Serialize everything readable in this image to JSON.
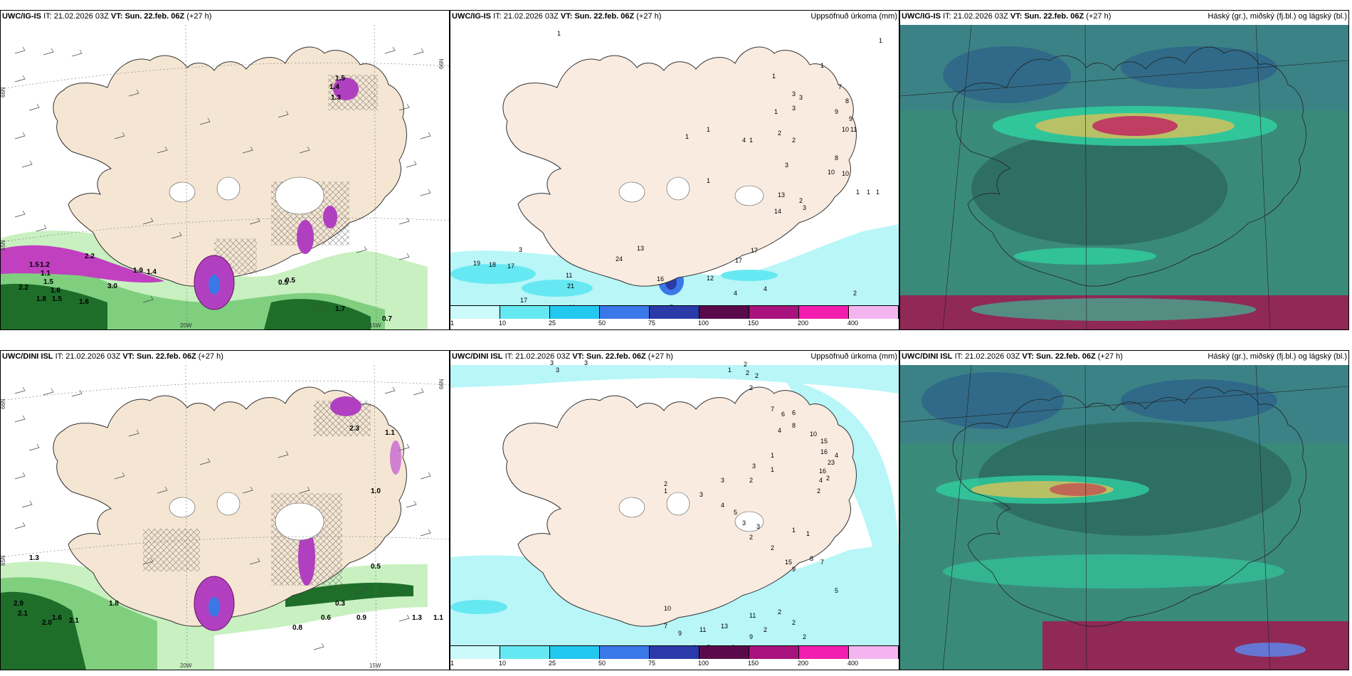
{
  "panels": [
    {
      "id": "p1",
      "model": "UWC/IG-IS",
      "it_label": "IT:",
      "it_value": "21.02.2026 03Z",
      "vt_label": "VT:",
      "vt_value": "Sun. 22.feb. 06Z",
      "lead": "(+27 h)",
      "right_title": ""
    },
    {
      "id": "p2",
      "model": "UWC/IG-IS",
      "it_label": "IT:",
      "it_value": "21.02.2026 03Z",
      "vt_label": "VT:",
      "vt_value": "Sun. 22.feb. 06Z",
      "lead": "(+27 h)",
      "right_title": "Uppsöfnuð úrkoma (mm)"
    },
    {
      "id": "p3",
      "model": "UWC/IG-IS",
      "it_label": "IT:",
      "it_value": "21.02.2026 03Z",
      "vt_label": "VT:",
      "vt_value": "Sun. 22.feb. 06Z",
      "lead": "(+27 h)",
      "right_title": "Háský (gr.), miðský (fj.bl.) og lágský (bl.)"
    },
    {
      "id": "p4",
      "model": "UWC/DINI ISL",
      "it_label": "IT:",
      "it_value": "21.02.2026 03Z",
      "vt_label": "VT:",
      "vt_value": "Sun. 22.feb. 06Z",
      "lead": "(+27 h)",
      "right_title": ""
    },
    {
      "id": "p5",
      "model": "UWC/DINI ISL",
      "it_label": "IT:",
      "it_value": "21.02.2026 03Z",
      "vt_label": "VT:",
      "vt_value": "Sun. 22.feb. 06Z",
      "lead": "(+27 h)",
      "right_title": "Uppsöfnuð úrkoma (mm)"
    },
    {
      "id": "p6",
      "model": "UWC/DINI ISL",
      "it_label": "IT:",
      "it_value": "21.02.2026 03Z",
      "vt_label": "VT:",
      "vt_value": "Sun. 22.feb. 06Z",
      "lead": "(+27 h)",
      "right_title": "Háský (gr.), miðský (fj.bl.) og lágský (bl.)"
    }
  ],
  "axis_labels": {
    "lat66": "66N",
    "lat65": "65N",
    "lat64": "64N",
    "lon20": "20W",
    "lon15": "15W"
  },
  "legend": {
    "labels": [
      "1",
      "10",
      "25",
      "50",
      "75",
      "100",
      "150",
      "200",
      "400"
    ],
    "colors": [
      "#ccfafa",
      "#66e8f2",
      "#22c8f0",
      "#3a78e8",
      "#2a3aa8",
      "#5a0a4a",
      "#a8127e",
      "#f21eb0",
      "#f4b4f0"
    ]
  },
  "precip_numbers_top": [
    "1",
    "1",
    "1",
    "1",
    "3",
    "7",
    "8",
    "9",
    "9",
    "10",
    "11",
    "3",
    "3",
    "1",
    "2",
    "2",
    "1",
    "1",
    "1",
    "4",
    "3",
    "8",
    "10",
    "10",
    "1",
    "1",
    "1",
    "13",
    "14",
    "2",
    "3",
    "1",
    "19",
    "18",
    "17",
    "3",
    "11",
    "21",
    "17",
    "13",
    "24",
    "16",
    "12",
    "17",
    "17",
    "4",
    "4",
    "2",
    "11",
    "7",
    "13"
  ],
  "precip_numbers_bottom": [
    "3",
    "3",
    "3",
    "1",
    "2",
    "2",
    "2",
    "2",
    "7",
    "6",
    "6",
    "8",
    "4",
    "10",
    "15",
    "16",
    "23",
    "16",
    "4",
    "4",
    "2",
    "2",
    "1",
    "1",
    "3",
    "2",
    "3",
    "2",
    "1",
    "3",
    "4",
    "5",
    "3",
    "3",
    "2",
    "2",
    "1",
    "1",
    "15",
    "9",
    "8",
    "7",
    "5",
    "2",
    "2",
    "2",
    "11",
    "9",
    "13",
    "11",
    "10",
    "7",
    "4",
    "9",
    "7",
    "2",
    "2"
  ],
  "wind_labels_top": [
    "2.2",
    "1.5",
    "1.2",
    "1.1",
    "1.9",
    "1.4",
    "2.2",
    "1.5",
    "1.6",
    "1.8",
    "1.5",
    "1.6",
    "3.0",
    "0.5",
    "0.5",
    "1.7",
    "0.7",
    "1.4",
    "1.3",
    "1.5"
  ],
  "wind_labels_bottom": [
    "1.3",
    "2.9",
    "2.1",
    "2.0",
    "1.6",
    "2.1",
    "1.8",
    "0.8",
    "0.6",
    "0.3",
    "0.9",
    "1.3",
    "1.1",
    "0.5",
    "2.3",
    "1.1",
    "1.0"
  ]
}
